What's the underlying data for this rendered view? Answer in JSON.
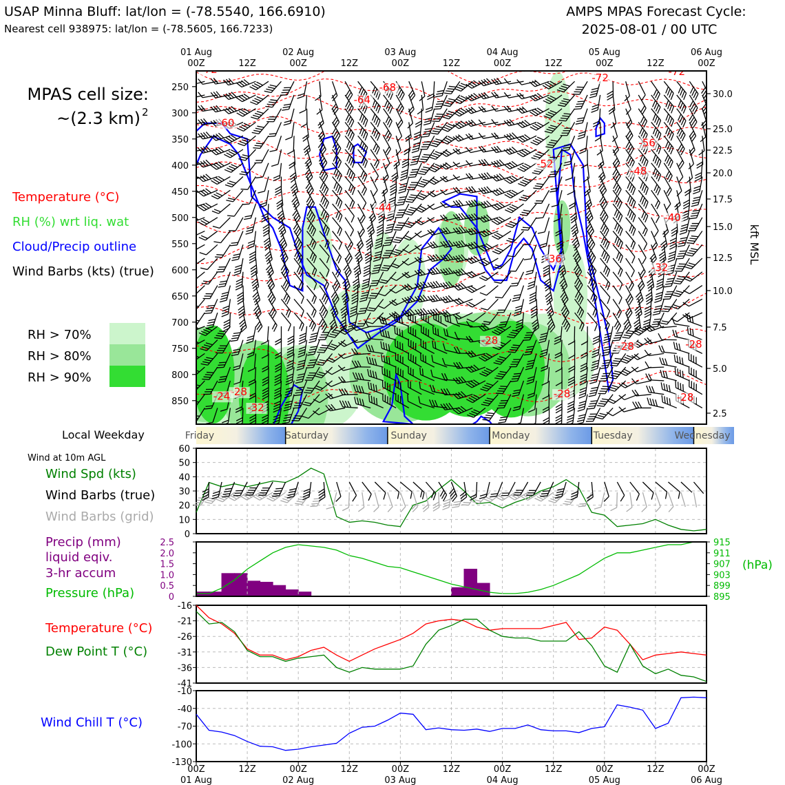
{
  "header": {
    "station_line": "USAP Minna Bluff: lat/lon = (-78.5540, 166.6910)",
    "cell_line": "Nearest cell 938975: lat/lon = (-78.5605, 166.7233)",
    "cycle_line1": "AMPS MPAS Forecast Cycle:",
    "cycle_line2": "2025-08-01 / 00 UTC"
  },
  "time_axis": {
    "top_days": [
      "01 Aug",
      "02 Aug",
      "03 Aug",
      "04 Aug",
      "05 Aug",
      "06 Aug"
    ],
    "ticks": [
      "00Z",
      "12Z",
      "00Z",
      "12Z",
      "00Z",
      "12Z",
      "00Z",
      "12Z",
      "00Z",
      "12Z",
      "00Z"
    ],
    "bottom_days": [
      "01 Aug",
      "02 Aug",
      "03 Aug",
      "04 Aug",
      "05 Aug",
      "06 Aug"
    ]
  },
  "upper_panel": {
    "cell_size_label": "MPAS cell size:",
    "cell_size_value": "~(2.3 km)",
    "cell_size_exp": "2",
    "legend": [
      {
        "label": "Temperature (°C)",
        "color": "#ff0000"
      },
      {
        "label": "RH (%) wrt liq. wat",
        "color": "#33dd33"
      },
      {
        "label": "Cloud/Precip outline",
        "color": "#0000ff"
      },
      {
        "label": "Wind Barbs (kts) (true)",
        "color": "#000000"
      }
    ],
    "rh_legend": [
      {
        "label": "RH > 70%",
        "color": "#ccf5cc"
      },
      {
        "label": "RH > 80%",
        "color": "#99e699"
      },
      {
        "label": "RH > 90%",
        "color": "#33dd33"
      }
    ],
    "pressure_ticks": [
      "250",
      "300",
      "350",
      "400",
      "450",
      "500",
      "550",
      "600",
      "650",
      "700",
      "750",
      "800",
      "850"
    ],
    "height_ticks": [
      "30.0",
      "25.0",
      "22.5",
      "20.0",
      "17.5",
      "15.0",
      "12.5",
      "10.0",
      "7.5",
      "5.0",
      "2.5"
    ],
    "height_axis_label": "kft MSL",
    "temperature_labels": [
      {
        "text": "-72",
        "hour": 3,
        "hpa": 224
      },
      {
        "text": "-72",
        "hour": 95,
        "hpa": 240
      },
      {
        "text": "-72",
        "hour": 113,
        "hpa": 228
      },
      {
        "text": "-68",
        "hour": 45,
        "hpa": 258
      },
      {
        "text": "-64",
        "hour": 39,
        "hpa": 282
      },
      {
        "text": "-60",
        "hour": 7,
        "hpa": 326
      },
      {
        "text": "-56",
        "hour": 106,
        "hpa": 364
      },
      {
        "text": "-52",
        "hour": 82,
        "hpa": 404
      },
      {
        "text": "-48",
        "hour": 104,
        "hpa": 418
      },
      {
        "text": "-44",
        "hour": 44,
        "hpa": 488
      },
      {
        "text": "-40",
        "hour": 112,
        "hpa": 507
      },
      {
        "text": "-36",
        "hour": 84,
        "hpa": 586
      },
      {
        "text": "-32",
        "hour": 109,
        "hpa": 602
      },
      {
        "text": "-28",
        "hour": 69,
        "hpa": 742
      },
      {
        "text": "-28",
        "hour": 101,
        "hpa": 753
      },
      {
        "text": "-28",
        "hour": 117,
        "hpa": 749
      },
      {
        "text": "-28",
        "hour": 86,
        "hpa": 844
      },
      {
        "text": "-28",
        "hour": 115,
        "hpa": 850
      },
      {
        "text": "-28",
        "hour": 10,
        "hpa": 840
      },
      {
        "text": "-24",
        "hour": 6,
        "hpa": 848
      },
      {
        "text": "-32",
        "hour": 14,
        "hpa": 870
      }
    ]
  },
  "weekday_strip": {
    "title": "Local Weekday",
    "days": [
      "Friday",
      "Saturday",
      "Sunday",
      "Monday",
      "Tuesday",
      "Wednesday"
    ]
  },
  "wind_panel": {
    "subtitle": "Wind at 10m AGL",
    "labels": [
      {
        "text": "Wind Spd (kts)",
        "color": "#008000"
      },
      {
        "text": "Wind Barbs (true)",
        "color": "#000000"
      },
      {
        "text": "Wind Barbs (grid)",
        "color": "#aaaaaa"
      }
    ],
    "y_ticks": [
      "0",
      "10",
      "20",
      "30",
      "40",
      "50",
      "60"
    ]
  },
  "precip_panel": {
    "labels": [
      {
        "text": "Precip (mm)",
        "color": "#800080"
      },
      {
        "text": "liquid eqiv.",
        "color": "#800080"
      },
      {
        "text": "3-hr accum",
        "color": "#800080"
      },
      {
        "text": "Pressure (hPa)",
        "color": "#00bb00"
      }
    ],
    "left_ticks": [
      "0",
      "0.5",
      "1.0",
      "1.5",
      "2.0",
      "2.5"
    ],
    "right_ticks": [
      "895",
      "899",
      "903",
      "907",
      "911",
      "915"
    ],
    "right_unit": "(hPa)"
  },
  "temp_panel": {
    "labels": [
      {
        "text": "Temperature (°C)",
        "color": "#ff0000"
      },
      {
        "text": "Dew Point T (°C)",
        "color": "#008000"
      }
    ],
    "y_ticks": [
      "-41",
      "-36",
      "-31",
      "-26",
      "-21",
      "-16"
    ]
  },
  "chill_panel": {
    "label": {
      "text": "Wind Chill T (°C)",
      "color": "#0000ff"
    },
    "y_ticks": [
      "-130",
      "-100",
      "-70",
      "-40",
      "-10"
    ]
  },
  "chart_data": [
    {
      "type": "line",
      "title": "Wind at 10m AGL",
      "ylabel": "Wind Spd (kts)",
      "xlabel": "",
      "ylim": [
        0,
        60
      ],
      "grid": true,
      "series": [
        {
          "name": "Wind Spd (kts)",
          "color": "#008000",
          "x": [
            0,
            3,
            6,
            9,
            12,
            15,
            18,
            21,
            24,
            27,
            30,
            33,
            36,
            39,
            42,
            45,
            48,
            51,
            54,
            57,
            60,
            63,
            66,
            69,
            72,
            75,
            78,
            81,
            84,
            87,
            90,
            93,
            96,
            99,
            102,
            105,
            108,
            111,
            114,
            117,
            120
          ],
          "y": [
            15,
            36,
            33,
            35,
            33,
            35,
            37,
            36,
            40,
            46,
            42,
            12,
            8,
            9,
            8,
            6,
            5,
            20,
            23,
            31,
            38,
            30,
            21,
            22,
            18,
            22,
            25,
            30,
            33,
            38,
            32,
            15,
            13,
            5,
            6,
            7,
            10,
            6,
            3,
            2,
            3
          ]
        }
      ]
    },
    {
      "type": "bar",
      "title": "",
      "ylabel": "Precip (mm) liquid eqiv. 3-hr accum",
      "ylim": [
        0,
        2.5
      ],
      "bars": [
        {
          "start": 0,
          "end": 3,
          "value": 0.2
        },
        {
          "start": 3,
          "end": 6,
          "value": 0.2
        },
        {
          "start": 6,
          "end": 9,
          "value": 1.05
        },
        {
          "start": 9,
          "end": 12,
          "value": 1.05
        },
        {
          "start": 12,
          "end": 15,
          "value": 0.7
        },
        {
          "start": 15,
          "end": 18,
          "value": 0.65
        },
        {
          "start": 18,
          "end": 21,
          "value": 0.5
        },
        {
          "start": 21,
          "end": 24,
          "value": 0.3
        },
        {
          "start": 24,
          "end": 27,
          "value": 0.2
        },
        {
          "start": 60,
          "end": 63,
          "value": 0.4
        },
        {
          "start": 63,
          "end": 66,
          "value": 1.25
        },
        {
          "start": 66,
          "end": 69,
          "value": 0.6
        }
      ]
    },
    {
      "type": "line",
      "title": "",
      "ylabel": "Pressure (hPa)",
      "ylim": [
        895,
        915
      ],
      "series": [
        {
          "name": "Pressure (hPa)",
          "color": "#00bb00",
          "x": [
            0,
            3,
            6,
            9,
            12,
            15,
            18,
            21,
            24,
            27,
            30,
            33,
            36,
            39,
            42,
            45,
            48,
            51,
            54,
            57,
            60,
            63,
            66,
            69,
            72,
            75,
            78,
            81,
            84,
            87,
            90,
            93,
            96,
            99,
            102,
            105,
            108,
            111,
            114,
            117,
            120
          ],
          "y": [
            896,
            896,
            898,
            901,
            905,
            908,
            911,
            913,
            914,
            913.5,
            913,
            912,
            910,
            909,
            907.5,
            906,
            905.5,
            904,
            902.5,
            901,
            899.5,
            898.5,
            897.5,
            896.5,
            896,
            896,
            896.5,
            897.5,
            899,
            901,
            903,
            906,
            909,
            911,
            911,
            912,
            913,
            914,
            914,
            915,
            915
          ]
        }
      ]
    },
    {
      "type": "line",
      "title": "",
      "ylabel": "Temperature / Dew Point T (°C)",
      "ylim": [
        -41,
        -16
      ],
      "grid": true,
      "series": [
        {
          "name": "Temperature (°C)",
          "color": "#ff0000",
          "x": [
            0,
            3,
            6,
            9,
            12,
            15,
            18,
            21,
            24,
            27,
            30,
            33,
            36,
            39,
            42,
            45,
            48,
            51,
            54,
            57,
            60,
            63,
            66,
            69,
            72,
            75,
            78,
            81,
            84,
            87,
            90,
            93,
            96,
            99,
            102,
            105,
            108,
            111,
            114,
            117,
            120
          ],
          "y": [
            -16,
            -20,
            -22,
            -25,
            -30,
            -32,
            -32,
            -33.5,
            -32.5,
            -30.5,
            -29.5,
            -32,
            -34,
            -32,
            -30,
            -28.5,
            -27,
            -25,
            -22,
            -21,
            -20.5,
            -21,
            -23,
            -24,
            -23.5,
            -23.5,
            -23.5,
            -23.5,
            -22.5,
            -21.5,
            -27,
            -26.5,
            -23,
            -24,
            -28.5,
            -33.5,
            -32,
            -31.5,
            -31,
            -31.5,
            -32
          ]
        },
        {
          "name": "Dew Point T (°C)",
          "color": "#008000",
          "x": [
            0,
            3,
            6,
            9,
            12,
            15,
            18,
            21,
            24,
            27,
            30,
            33,
            36,
            39,
            42,
            45,
            48,
            51,
            54,
            57,
            60,
            63,
            66,
            69,
            72,
            75,
            78,
            81,
            84,
            87,
            90,
            93,
            96,
            99,
            102,
            105,
            108,
            111,
            114,
            117,
            120
          ],
          "y": [
            -18,
            -22,
            -21.5,
            -24.5,
            -30.5,
            -32.5,
            -32.5,
            -34,
            -33,
            -32.5,
            -32,
            -36,
            -37.5,
            -36,
            -36.5,
            -36.5,
            -36.5,
            -35.5,
            -28.5,
            -24,
            -22.5,
            -20.5,
            -20.5,
            -24,
            -26,
            -26.5,
            -26.5,
            -27.5,
            -27.5,
            -27.5,
            -24.5,
            -29,
            -35.5,
            -37.5,
            -28.5,
            -35.5,
            -38,
            -36.5,
            -38.5,
            -39,
            -40.5
          ]
        }
      ]
    },
    {
      "type": "line",
      "title": "",
      "ylabel": "Wind Chill T (°C)",
      "ylim": [
        -130,
        -10
      ],
      "grid": true,
      "series": [
        {
          "name": "Wind Chill T (°C)",
          "color": "#0000ff",
          "x": [
            0,
            3,
            6,
            9,
            12,
            15,
            18,
            21,
            24,
            27,
            30,
            33,
            36,
            39,
            42,
            45,
            48,
            51,
            54,
            57,
            60,
            63,
            66,
            69,
            72,
            75,
            78,
            81,
            84,
            87,
            90,
            93,
            96,
            99,
            102,
            105,
            108,
            111,
            114,
            117,
            120
          ],
          "y": [
            -50,
            -77,
            -80,
            -86,
            -96,
            -104,
            -105,
            -111,
            -109,
            -105,
            -102,
            -99,
            -82,
            -72,
            -70,
            -60,
            -48,
            -50,
            -76,
            -73,
            -76,
            -77,
            -75,
            -79,
            -74,
            -74,
            -68,
            -76,
            -78,
            -78,
            -81,
            -74,
            -71,
            -34,
            -38,
            -43,
            -74,
            -65,
            -22,
            -21,
            -22
          ]
        }
      ]
    }
  ]
}
